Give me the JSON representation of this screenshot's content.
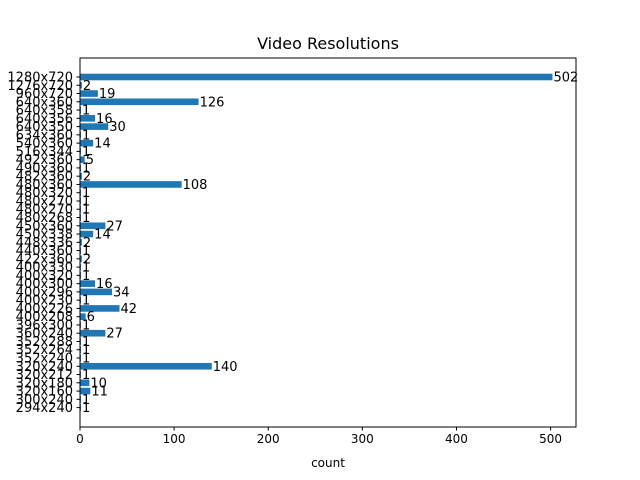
{
  "chart_data": {
    "type": "bar",
    "orientation": "horizontal",
    "title": "Video Resolutions",
    "xlabel": "count",
    "ylabel": "",
    "xlim": [
      0,
      527
    ],
    "xticks": [
      0,
      100,
      200,
      300,
      400,
      500
    ],
    "grid": false,
    "bar_color": "#1f77b4",
    "categories": [
      "1280x720",
      "1276x720",
      "960x720",
      "640x360",
      "640x358",
      "640x356",
      "640x350",
      "634x360",
      "540x360",
      "516x344",
      "492x360",
      "490x360",
      "482x360",
      "480x360",
      "480x320",
      "480x270",
      "480x270",
      "480x268",
      "450x360",
      "450x338",
      "448x336",
      "440x360",
      "422x360",
      "400x330",
      "400x320",
      "400x300",
      "400x296",
      "400x230",
      "400x226",
      "400x208",
      "396x300",
      "360x240",
      "352x288",
      "352x264",
      "352x240",
      "320x240",
      "320x212",
      "320x180",
      "320x160",
      "300x240",
      "294x240"
    ],
    "values": [
      502,
      2,
      19,
      126,
      1,
      16,
      30,
      1,
      14,
      1,
      5,
      1,
      2,
      108,
      1,
      1,
      1,
      1,
      27,
      14,
      2,
      1,
      2,
      1,
      1,
      16,
      34,
      1,
      42,
      6,
      1,
      27,
      1,
      1,
      1,
      140,
      1,
      10,
      11,
      1,
      1
    ]
  }
}
